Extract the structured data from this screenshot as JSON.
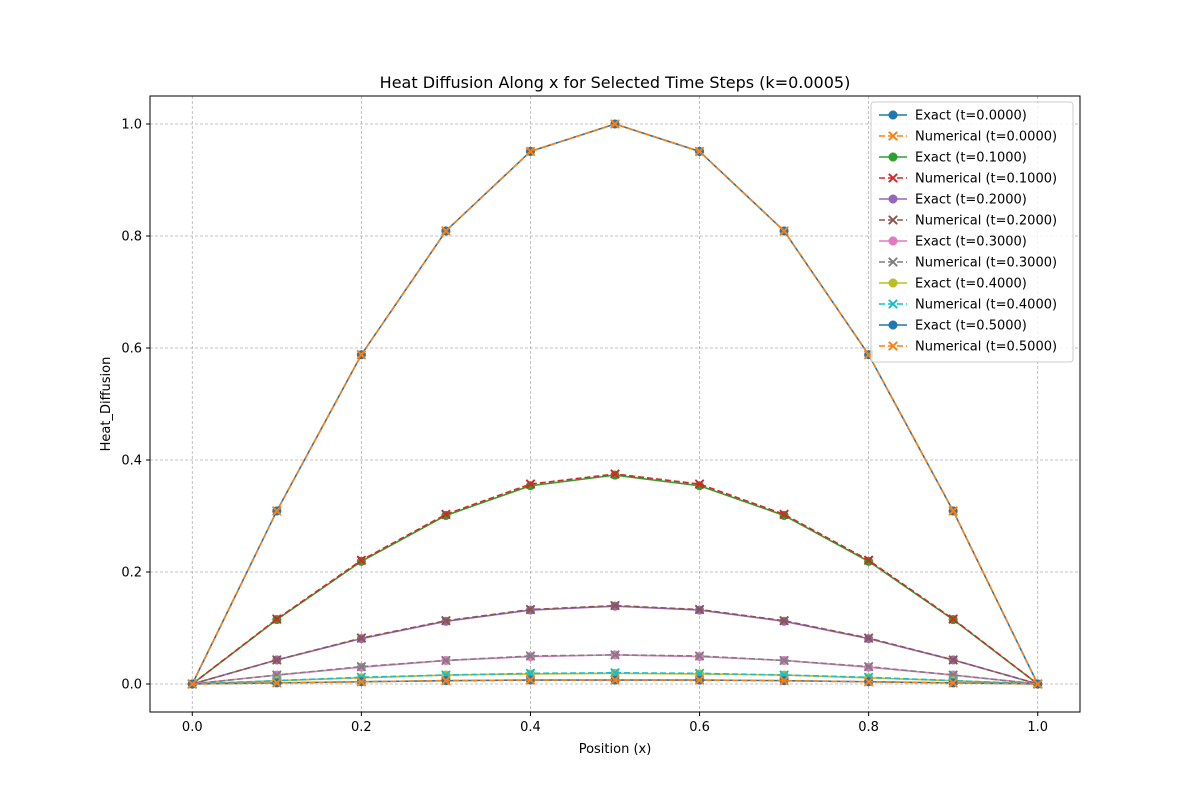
{
  "chart_data": {
    "type": "line",
    "title": "Heat Diffusion Along x for Selected Time Steps (k=0.0005)",
    "xlabel": "Position (x)",
    "ylabel": "Heat_Diffusion",
    "xlim": [
      -0.05,
      1.05
    ],
    "ylim": [
      -0.05,
      1.05
    ],
    "xticks": [
      "0.0",
      "0.2",
      "0.4",
      "0.6",
      "0.8",
      "1.0"
    ],
    "yticks": [
      "0.0",
      "0.2",
      "0.4",
      "0.6",
      "0.8",
      "1.0"
    ],
    "grid": true,
    "legend_position": "top-right",
    "x": [
      0.0,
      0.1,
      0.2,
      0.3,
      0.4,
      0.5,
      0.6,
      0.7,
      0.8,
      0.9,
      1.0
    ],
    "series": [
      {
        "name": "Exact (t=0.0000)",
        "color": "#1f77b4",
        "style": "solid",
        "marker": "circle",
        "values": [
          0.0,
          0.309,
          0.588,
          0.809,
          0.951,
          1.0,
          0.951,
          0.809,
          0.588,
          0.309,
          0.0
        ]
      },
      {
        "name": "Numerical (t=0.0000)",
        "color": "#ff7f0e",
        "style": "dashed",
        "marker": "x",
        "values": [
          0.0,
          0.309,
          0.588,
          0.809,
          0.951,
          1.0,
          0.951,
          0.809,
          0.588,
          0.309,
          0.0
        ]
      },
      {
        "name": "Exact (t=0.1000)",
        "color": "#2ca02c",
        "style": "solid",
        "marker": "circle",
        "values": [
          0.0,
          0.115,
          0.219,
          0.301,
          0.354,
          0.373,
          0.354,
          0.301,
          0.219,
          0.115,
          0.0
        ]
      },
      {
        "name": "Numerical (t=0.1000)",
        "color": "#d62728",
        "style": "dashed",
        "marker": "x",
        "values": [
          0.0,
          0.116,
          0.221,
          0.303,
          0.357,
          0.375,
          0.357,
          0.303,
          0.221,
          0.116,
          0.0
        ]
      },
      {
        "name": "Exact (t=0.2000)",
        "color": "#9467bd",
        "style": "solid",
        "marker": "circle",
        "values": [
          0.0,
          0.043,
          0.081,
          0.112,
          0.132,
          0.139,
          0.132,
          0.112,
          0.081,
          0.043,
          0.0
        ]
      },
      {
        "name": "Numerical (t=0.2000)",
        "color": "#8c564b",
        "style": "dashed",
        "marker": "x",
        "values": [
          0.0,
          0.043,
          0.082,
          0.113,
          0.133,
          0.14,
          0.133,
          0.113,
          0.082,
          0.043,
          0.0
        ]
      },
      {
        "name": "Exact (t=0.3000)",
        "color": "#e377c2",
        "style": "solid",
        "marker": "circle",
        "values": [
          0.0,
          0.016,
          0.03,
          0.042,
          0.049,
          0.052,
          0.049,
          0.042,
          0.03,
          0.016,
          0.0
        ]
      },
      {
        "name": "Numerical (t=0.3000)",
        "color": "#7f7f7f",
        "style": "dashed",
        "marker": "x",
        "values": [
          0.0,
          0.016,
          0.031,
          0.042,
          0.05,
          0.052,
          0.05,
          0.042,
          0.031,
          0.016,
          0.0
        ]
      },
      {
        "name": "Exact (t=0.4000)",
        "color": "#bcbd22",
        "style": "solid",
        "marker": "circle",
        "values": [
          0.0,
          0.006,
          0.011,
          0.016,
          0.018,
          0.019,
          0.018,
          0.016,
          0.011,
          0.006,
          0.0
        ]
      },
      {
        "name": "Numerical (t=0.4000)",
        "color": "#17becf",
        "style": "dashed",
        "marker": "x",
        "values": [
          0.0,
          0.006,
          0.012,
          0.016,
          0.019,
          0.02,
          0.019,
          0.016,
          0.012,
          0.006,
          0.0
        ]
      },
      {
        "name": "Exact (t=0.5000)",
        "color": "#1f77b4",
        "style": "solid",
        "marker": "circle",
        "values": [
          0.0,
          0.002,
          0.004,
          0.006,
          0.007,
          0.007,
          0.007,
          0.006,
          0.004,
          0.002,
          0.0
        ]
      },
      {
        "name": "Numerical (t=0.5000)",
        "color": "#ff7f0e",
        "style": "dashed",
        "marker": "x",
        "values": [
          0.0,
          0.002,
          0.004,
          0.006,
          0.007,
          0.007,
          0.007,
          0.006,
          0.004,
          0.002,
          0.0
        ]
      }
    ]
  }
}
